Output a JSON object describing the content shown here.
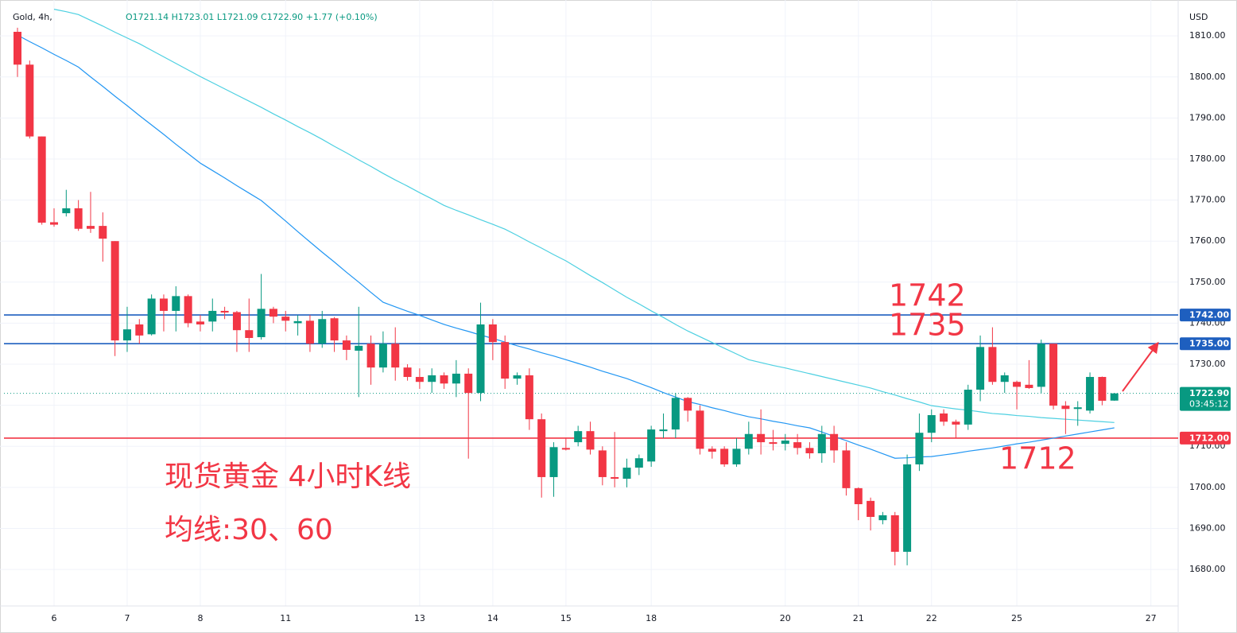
{
  "chart_data": {
    "type": "candlestick",
    "header": {
      "symbol": "Gold, 4h,",
      "ohlc": "O1721.14  H1723.01  L1721.09  C1722.90  +1.77 (+0.10%)"
    },
    "currency": "USD",
    "categories": [
      null,
      null,
      null,
      "6",
      null,
      null,
      null,
      null,
      null,
      "7",
      null,
      null,
      null,
      null,
      null,
      "8",
      null,
      null,
      null,
      null,
      null,
      null,
      "11",
      null,
      null,
      null,
      null,
      null,
      null,
      null,
      null,
      null,
      null,
      "13",
      null,
      null,
      null,
      null,
      null,
      "14",
      null,
      null,
      null,
      null,
      null,
      "15",
      null,
      null,
      null,
      null,
      null,
      null,
      "18",
      null,
      null,
      null,
      null,
      null,
      null,
      null,
      null,
      null,
      null,
      "20",
      null,
      null,
      null,
      null,
      null,
      "21",
      null,
      null,
      null,
      null,
      null,
      "22",
      null,
      null,
      null,
      null,
      null,
      null,
      "25",
      null,
      null,
      null,
      null,
      null,
      null,
      null,
      null,
      null,
      null,
      "27"
    ],
    "open": [
      1811,
      1803,
      1785.5,
      1764.6,
      1766.8,
      1768,
      1763.7,
      1763.7,
      1760,
      1735.8,
      1739.7,
      1737.3,
      1746,
      1743,
      1746.6,
      1740.4,
      1740.4,
      1743,
      1742.7,
      1738.3,
      1736.6,
      1743.5,
      1741.6,
      1740,
      1740.6,
      1735,
      1741.2,
      1735.8,
      1733.3,
      1735,
      1729.2,
      1735,
      1729.2,
      1726.9,
      1725.7,
      1727.3,
      1725.3,
      1727.7,
      1723,
      1739.7,
      1735.4,
      1726.5,
      1727.3,
      1716.6,
      1702.5,
      1709.6,
      1711,
      1713.7,
      1709,
      1702.5,
      1702.1,
      1704.8,
      1706.3,
      1713.7,
      1714.1,
      1721.8,
      1718.7,
      1709.4,
      1709.4,
      1705.6,
      1709.4,
      1713,
      1711,
      1710.6,
      1711,
      1709.6,
      1708.3,
      1713,
      1709,
      1699.8,
      1696.7,
      1692,
      1693.2,
      1684.3,
      1705.6,
      1713.3,
      1718,
      1716,
      1715.3,
      1723.8,
      1734.2,
      1725.7,
      1725.7,
      1725,
      1724.5,
      1735,
      1719.9,
      1719.1,
      1718.7,
      1726.9,
      1721.14,
      null,
      null,
      null
    ],
    "high": [
      1812,
      1804,
      1785.5,
      1768,
      1772.5,
      1770,
      1772,
      1767,
      1760,
      1744,
      1741,
      1747,
      1747,
      1749,
      1747,
      1742,
      1746,
      1744,
      1743,
      1746,
      1752,
      1744,
      1743,
      1742,
      1742,
      1743,
      1741.5,
      1737,
      1744,
      1737,
      1738,
      1739,
      1730,
      1729,
      1729,
      1728,
      1731,
      1729,
      1745,
      1741,
      1737,
      1728,
      1729,
      1718,
      1711,
      1712,
      1715,
      1716,
      1710,
      1713.5,
      1707,
      1708,
      1715,
      1718,
      1723,
      1722,
      1720,
      1710,
      1710,
      1712,
      1716,
      1719,
      1714,
      1713,
      1713,
      1711,
      1715,
      1715,
      1711,
      1700,
      1697.5,
      1694,
      1694,
      1708,
      1718,
      1719,
      1719,
      1716.5,
      1725,
      1737,
      1739,
      1728,
      1726,
      1731,
      1736,
      1735,
      1721,
      1721,
      1728,
      1727,
      1723.01,
      null,
      null,
      null
    ],
    "low": [
      1800,
      1785,
      1764,
      1763.5,
      1766,
      1762.5,
      1762,
      1755,
      1732,
      1733,
      1735,
      1737,
      1738,
      1738,
      1739,
      1738,
      1738,
      1741,
      1733,
      1733,
      1736,
      1740,
      1738,
      1737,
      1733,
      1734,
      1733,
      1731,
      1722,
      1725,
      1728,
      1726,
      1726,
      1724,
      1723,
      1724,
      1722,
      1707,
      1721,
      1731,
      1724,
      1725,
      1714,
      1697.5,
      1697.7,
      1709,
      1710,
      1708,
      1700.5,
      1700,
      1700,
      1703,
      1705,
      1712,
      1712,
      1716,
      1708,
      1707,
      1705,
      1705,
      1708,
      1708,
      1709,
      1709,
      1708,
      1707,
      1706,
      1706,
      1698,
      1692,
      1689.5,
      1691,
      1681,
      1681,
      1704,
      1711,
      1715,
      1712,
      1714,
      1721,
      1725,
      1723,
      1719,
      1724,
      1723,
      1719,
      1713,
      1715,
      1718,
      1720,
      1721.09,
      null,
      null,
      null
    ],
    "close": [
      1803,
      1785.5,
      1764.5,
      1764,
      1768,
      1763,
      1763,
      1760.6,
      1735.8,
      1738.5,
      1737,
      1746,
      1743,
      1746.6,
      1740,
      1739.7,
      1743,
      1742.6,
      1738.3,
      1736.4,
      1743.5,
      1741.6,
      1740.6,
      1740.5,
      1735,
      1741,
      1735.8,
      1733.5,
      1734.5,
      1729.2,
      1735,
      1729.2,
      1726.9,
      1725.7,
      1727.3,
      1725.3,
      1727.7,
      1723,
      1739.7,
      1735.4,
      1726.5,
      1727.3,
      1716.6,
      1702.5,
      1709.8,
      1709.2,
      1713.7,
      1709.2,
      1702.5,
      1702.1,
      1704.8,
      1707.1,
      1714.1,
      1714.1,
      1721.8,
      1718.7,
      1709.4,
      1708.7,
      1705.6,
      1709.4,
      1713,
      1711,
      1710.6,
      1711.4,
      1709.6,
      1708.3,
      1713,
      1709,
      1699.8,
      1695.9,
      1692.8,
      1693.2,
      1684.3,
      1705.6,
      1713.3,
      1717.6,
      1716,
      1715.3,
      1723.8,
      1734.2,
      1725.7,
      1727.3,
      1724.5,
      1724.2,
      1735,
      1719.9,
      1719.1,
      1719.5,
      1726.9,
      1721.1,
      1722.9,
      null,
      null,
      null
    ],
    "up_color": "#089981",
    "down_color": "#f23645",
    "series": [
      {
        "color": "#2196f3",
        "values": [
          1810.2,
          1808.6,
          1807.1,
          1805.5,
          1804.0,
          1802.4,
          1800.0,
          1797.7,
          1795.3,
          1793.0,
          1790.6,
          1788.3,
          1786.0,
          1783.6,
          1781.3,
          1779.0,
          1777.2,
          1775.4,
          1773.5,
          1771.7,
          1769.9,
          1767.4,
          1764.9,
          1762.3,
          1759.8,
          1757.3,
          1754.9,
          1752.4,
          1750.0,
          1747.5,
          1745.1,
          1744.0,
          1742.9,
          1741.9,
          1740.8,
          1739.7,
          1738.8,
          1738.0,
          1737.1,
          1736.3,
          1735.4,
          1734.5,
          1733.7,
          1732.8,
          1732.0,
          1731.1,
          1730.2,
          1729.3,
          1728.3,
          1727.4,
          1726.5,
          1725.4,
          1724.3,
          1723.1,
          1722.0,
          1720.9,
          1720.2,
          1719.4,
          1718.7,
          1717.9,
          1717.2,
          1716.7,
          1716.1,
          1715.6,
          1715.0,
          1714.5,
          1713.5,
          1712.4,
          1711.4,
          1710.3,
          1709.3,
          1708.2,
          1707.1,
          1707.2,
          1707.4,
          1707.5,
          1707.9,
          1708.3,
          1708.8,
          1709.2,
          1709.6,
          1710.1,
          1710.6,
          1711.0,
          1711.5,
          1712.0,
          1712.5,
          1713.0,
          1713.5,
          1714.0,
          1714.5,
          null,
          null,
          null
        ]
      },
      {
        "color": "#4dd0e1",
        "values": [
          null,
          null,
          null,
          1816.5,
          1815.9,
          1815.2,
          1813.8,
          1812.4,
          1810.9,
          1809.5,
          1808.1,
          1806.5,
          1804.9,
          1803.3,
          1801.7,
          1800.1,
          1798.6,
          1797.1,
          1795.6,
          1794.1,
          1792.6,
          1791.0,
          1789.5,
          1787.9,
          1786.4,
          1784.8,
          1783.1,
          1781.5,
          1779.8,
          1778.2,
          1776.5,
          1774.9,
          1773.4,
          1771.8,
          1770.3,
          1768.7,
          1767.5,
          1766.4,
          1765.2,
          1764.1,
          1762.9,
          1761.4,
          1759.8,
          1758.3,
          1756.7,
          1755.2,
          1753.4,
          1751.6,
          1749.9,
          1748.1,
          1746.3,
          1744.7,
          1743.0,
          1741.4,
          1739.7,
          1738.1,
          1736.7,
          1735.3,
          1733.9,
          1732.5,
          1731.1,
          1730.4,
          1729.7,
          1729.1,
          1728.4,
          1727.7,
          1727.0,
          1726.3,
          1725.6,
          1724.9,
          1724.2,
          1723.3,
          1722.5,
          1721.6,
          1720.8,
          1719.9,
          1719.5,
          1719.1,
          1718.8,
          1718.4,
          1718.0,
          1717.8,
          1717.5,
          1717.3,
          1717.0,
          1716.8,
          1716.6,
          1716.4,
          1716.2,
          1716.0,
          1715.8,
          null,
          null,
          null
        ]
      }
    ],
    "ylim": [
      1671.1,
      1817.2
    ],
    "yticks": [
      {
        "value": 1680,
        "label": "1680.00"
      },
      {
        "value": 1690,
        "label": "1690.00"
      },
      {
        "value": 1700,
        "label": "1700.00"
      },
      {
        "value": 1710,
        "label": "1710.00"
      },
      {
        "value": 1720,
        "label": "1720.00"
      },
      {
        "value": 1730,
        "label": "1730.00"
      },
      {
        "value": 1740,
        "label": "1740.00"
      },
      {
        "value": 1750,
        "label": "1750.00"
      },
      {
        "value": 1760,
        "label": "1760.00"
      },
      {
        "value": 1770,
        "label": "1770.00"
      },
      {
        "value": 1780,
        "label": "1780.00"
      },
      {
        "value": 1790,
        "label": "1790.00"
      },
      {
        "value": 1800,
        "label": "1800.00"
      },
      {
        "value": 1810,
        "label": "1810.00"
      }
    ],
    "grid": true,
    "levels": [
      {
        "value": 1742,
        "label": "1742.00",
        "annotation": "1742",
        "color": "#1e5fbf"
      },
      {
        "value": 1735,
        "label": "1735.00",
        "annotation": "1735",
        "color": "#1e5fbf"
      },
      {
        "value": 1712,
        "label": "1712.00",
        "annotation": "1712",
        "color": "#f23645"
      }
    ],
    "annotation_color": "#f23645",
    "last": {
      "value": 1722.9,
      "label": "1722.90",
      "countdown": "03:45:12",
      "color": "#089981"
    },
    "annotations": [
      "现货黄金 4小时K线",
      "均线:30、60"
    ]
  }
}
